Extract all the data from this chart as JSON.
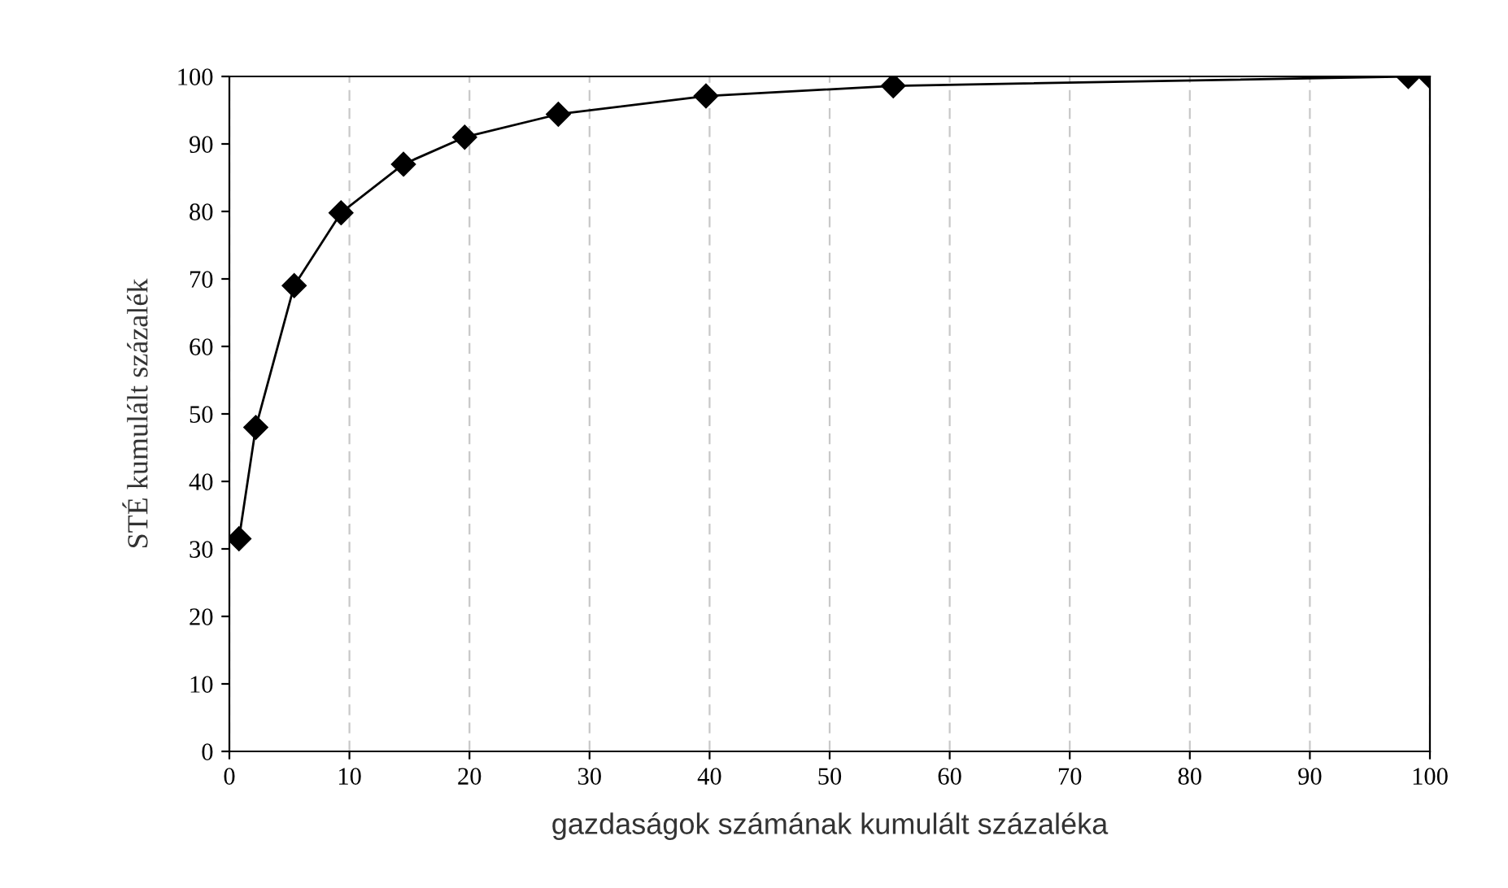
{
  "chart_data": {
    "type": "line",
    "xlabel": "gazdaságok számának kumulált százaléka",
    "ylabel": "STÉ kumulált százalék",
    "x": [
      0.8,
      2.2,
      5.4,
      9.3,
      14.5,
      19.6,
      27.4,
      39.7,
      55.3,
      98.2,
      100
    ],
    "series": [
      {
        "color": "#000000",
        "values": [
          31.5,
          48,
          69,
          79.8,
          87,
          91,
          94.4,
          97.1,
          98.6,
          100,
          100
        ]
      }
    ],
    "xlim": [
      0,
      100
    ],
    "ylim": [
      0,
      100
    ],
    "xticks": [
      0,
      10,
      20,
      30,
      40,
      50,
      60,
      70,
      80,
      90,
      100
    ],
    "yticks": [
      0,
      10,
      20,
      30,
      40,
      50,
      60,
      70,
      80,
      90,
      100
    ],
    "grid": "x",
    "marker": "diamond",
    "line_style": "solid",
    "legend": false
  }
}
